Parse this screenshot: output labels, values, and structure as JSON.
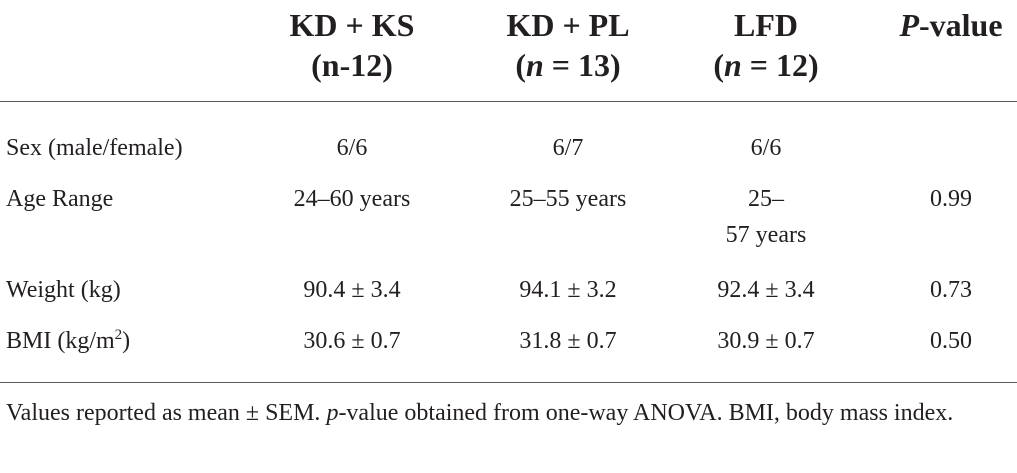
{
  "header": {
    "kd_ks": {
      "line1": "KD + KS",
      "line2": "(n-12)"
    },
    "kd_pl": {
      "line1": "KD + PL",
      "line2_open": "(",
      "line2_n": "n",
      "line2_rest": " = 13)"
    },
    "lfd": {
      "line1": "LFD",
      "line2_open": "(",
      "line2_n": "n",
      "line2_rest": " = 12)"
    },
    "pvalue": {
      "p": "P",
      "rest": "-value"
    }
  },
  "rows": [
    {
      "label": "Sex (male/female)",
      "kd_ks": "6/6",
      "kd_pl": "6/7",
      "lfd": "6/6",
      "p": ""
    },
    {
      "label": "Age Range",
      "kd_ks": "24–60 years",
      "kd_pl": "25–55 years",
      "lfd_line1": "25–",
      "lfd_line2": "57 years",
      "p": "0.99"
    },
    {
      "label": "Weight (kg)",
      "kd_ks": "90.4 ± 3.4",
      "kd_pl": "94.1 ± 3.2",
      "lfd": "92.4 ± 3.4",
      "p": "0.73"
    },
    {
      "label_pre": "BMI (kg/m",
      "label_sup": "2",
      "label_post": ")",
      "kd_ks": "30.6 ± 0.7",
      "kd_pl": "31.8 ± 0.7",
      "lfd": "30.9 ± 0.7",
      "p": "0.50"
    }
  ],
  "footnote": {
    "part1": "Values reported as mean ± SEM. ",
    "p_ital": "p",
    "part2": "-value obtained from one-way ANOVA. BMI, body mass index."
  }
}
